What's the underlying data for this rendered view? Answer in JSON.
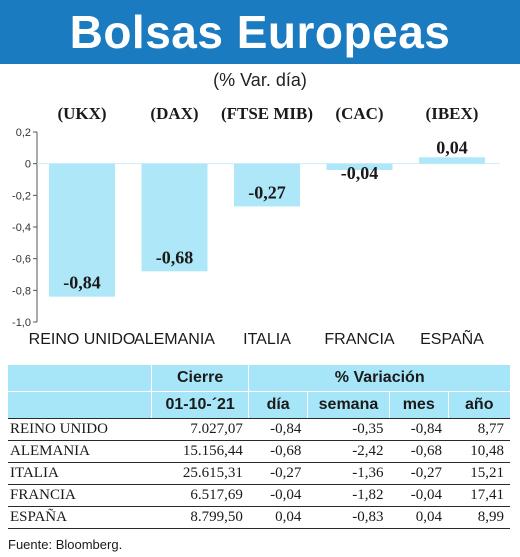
{
  "header": {
    "title": "Bolsas Europeas",
    "subtitle": "(% Var. día)"
  },
  "chart_data": {
    "type": "bar",
    "index_codes": [
      "(UKX)",
      "(DAX)",
      "(FTSE MIB)",
      "(CAC)",
      "(IBEX)"
    ],
    "categories": [
      "REINO UNIDO",
      "ALEMANIA",
      "ITALIA",
      "FRANCIA",
      "ESPAÑA"
    ],
    "values": [
      -0.84,
      -0.68,
      -0.27,
      -0.04,
      0.04
    ],
    "value_labels": [
      "-0,84",
      "-0,68",
      "-0,27",
      "-0,04",
      "0,04"
    ],
    "yticks": [
      0.2,
      0,
      -0.2,
      -0.4,
      -0.6,
      -0.8,
      -1.0
    ],
    "ytick_labels": [
      "0,2",
      "0",
      "-0,2",
      "-0,4",
      "-0,6",
      "-0,8",
      "-1,0"
    ],
    "ylim": [
      -1.0,
      0.2
    ],
    "bar_color": "#aee8f8",
    "grid": false
  },
  "table": {
    "header_cierre": "Cierre",
    "header_variacion": "% Variación",
    "header_date": "01-10-´21",
    "columns": [
      "día",
      "semana",
      "mes",
      "año"
    ],
    "rows": [
      {
        "name": "REINO UNIDO",
        "cierre": "7.027,07",
        "dia": "-0,84",
        "semana": "-0,35",
        "mes": "-0,84",
        "ano": "8,77"
      },
      {
        "name": "ALEMANIA",
        "cierre": "15.156,44",
        "dia": "-0,68",
        "semana": "-2,42",
        "mes": "-0,68",
        "ano": "10,48"
      },
      {
        "name": "ITALIA",
        "cierre": "25.615,31",
        "dia": "-0,27",
        "semana": "-1,36",
        "mes": "-0,27",
        "ano": "15,21"
      },
      {
        "name": "FRANCIA",
        "cierre": "6.517,69",
        "dia": "-0,04",
        "semana": "-1,82",
        "mes": "-0,04",
        "ano": "17,41"
      },
      {
        "name": "ESPAÑA",
        "cierre": "8.799,50",
        "dia": "0,04",
        "semana": "-0,83",
        "mes": "0,04",
        "ano": "8,99"
      }
    ],
    "header_color": "#a6e6f8"
  },
  "source": "Fuente: Bloomberg."
}
